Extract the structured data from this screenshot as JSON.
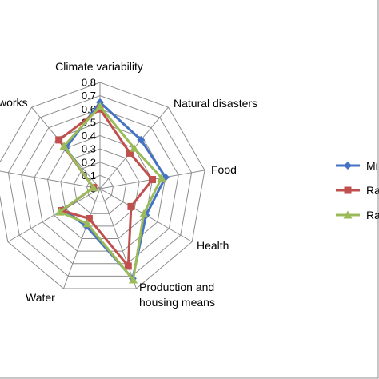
{
  "chart_data": {
    "type": "radar",
    "axes": [
      "Climate variability",
      "Natural disasters",
      "Food",
      "Health",
      "Production and housing means",
      "Water",
      "",
      "",
      "works"
    ],
    "axis_label_lines": {
      "4": [
        "Production and",
        "housing means"
      ]
    },
    "rmax": 0.8,
    "ticks": [
      "0",
      "0.1",
      "0.2",
      "0.3",
      "0.4",
      "0.5",
      "0.6",
      "0.7",
      "0.8"
    ],
    "series": [
      {
        "name": "Mi",
        "color": "#4472C4",
        "marker": "diamond",
        "values": [
          0.65,
          0.48,
          0.5,
          0.4,
          0.72,
          0.3,
          0.32,
          0.05,
          0.4
        ]
      },
      {
        "name": "Ra",
        "color": "#C0504D",
        "marker": "square",
        "values": [
          0.6,
          0.35,
          0.4,
          0.27,
          0.62,
          0.24,
          0.33,
          0.05,
          0.48
        ]
      },
      {
        "name": "Ra",
        "color": "#9BBB59",
        "marker": "triangle",
        "values": [
          0.62,
          0.4,
          0.47,
          0.38,
          0.73,
          0.28,
          0.35,
          0.05,
          0.42
        ]
      }
    ],
    "legend_position": "right"
  }
}
